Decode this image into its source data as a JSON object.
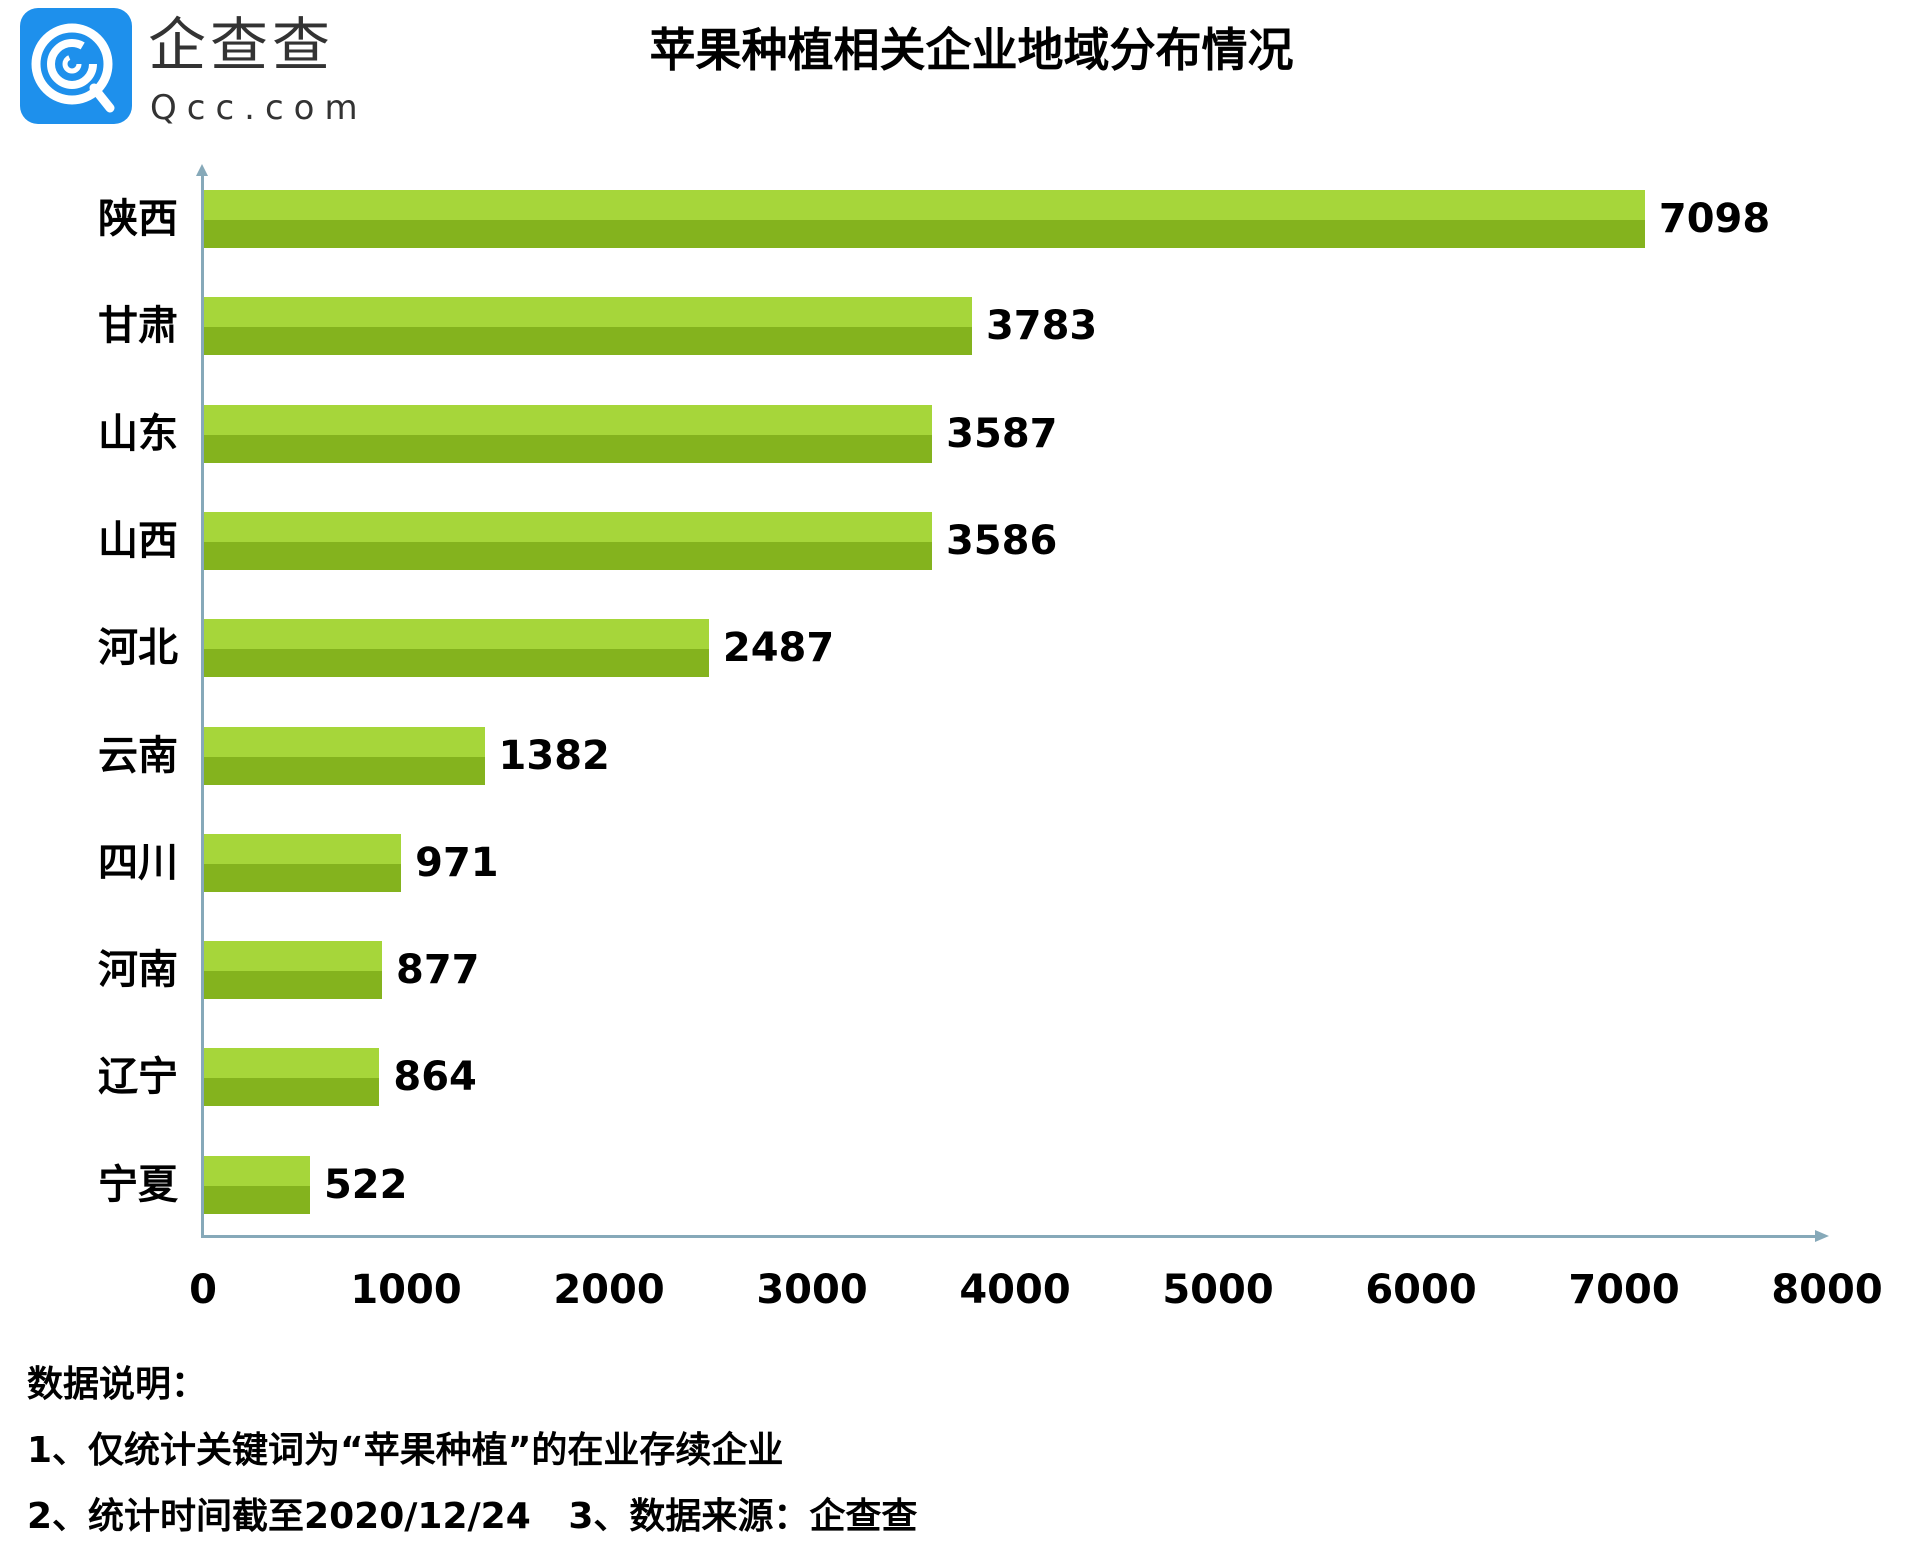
{
  "logo": {
    "cn": "企查查",
    "en": "Qcc.com",
    "color": "#1e90ec"
  },
  "title": "苹果种植相关企业地域分布情况",
  "colors": {
    "bar_light": "#a6d63a",
    "bar_dark": "#84b31e",
    "axis": "#86a9b9"
  },
  "chart_data": {
    "type": "bar",
    "orientation": "horizontal",
    "title": "苹果种植相关企业地域分布情况",
    "categories": [
      "陕西",
      "甘肃",
      "山东",
      "山西",
      "河北",
      "云南",
      "四川",
      "河南",
      "辽宁",
      "宁夏"
    ],
    "values": [
      7098,
      3783,
      3587,
      3586,
      2487,
      1382,
      971,
      877,
      864,
      522
    ],
    "xlabel": "",
    "ylabel": "",
    "xlim": [
      0,
      8000
    ],
    "xticks": [
      "0",
      "1000",
      "2000",
      "3000",
      "4000",
      "5000",
      "6000",
      "7000",
      "8000"
    ],
    "grid": false,
    "data_labels": true,
    "legend": null
  },
  "notes": {
    "heading": "数据说明：",
    "line1": "1、仅统计关键词为“苹果种植”的在业存续企业",
    "line2": "2、统计时间截至2020/12/24   3、数据来源：企查查"
  }
}
